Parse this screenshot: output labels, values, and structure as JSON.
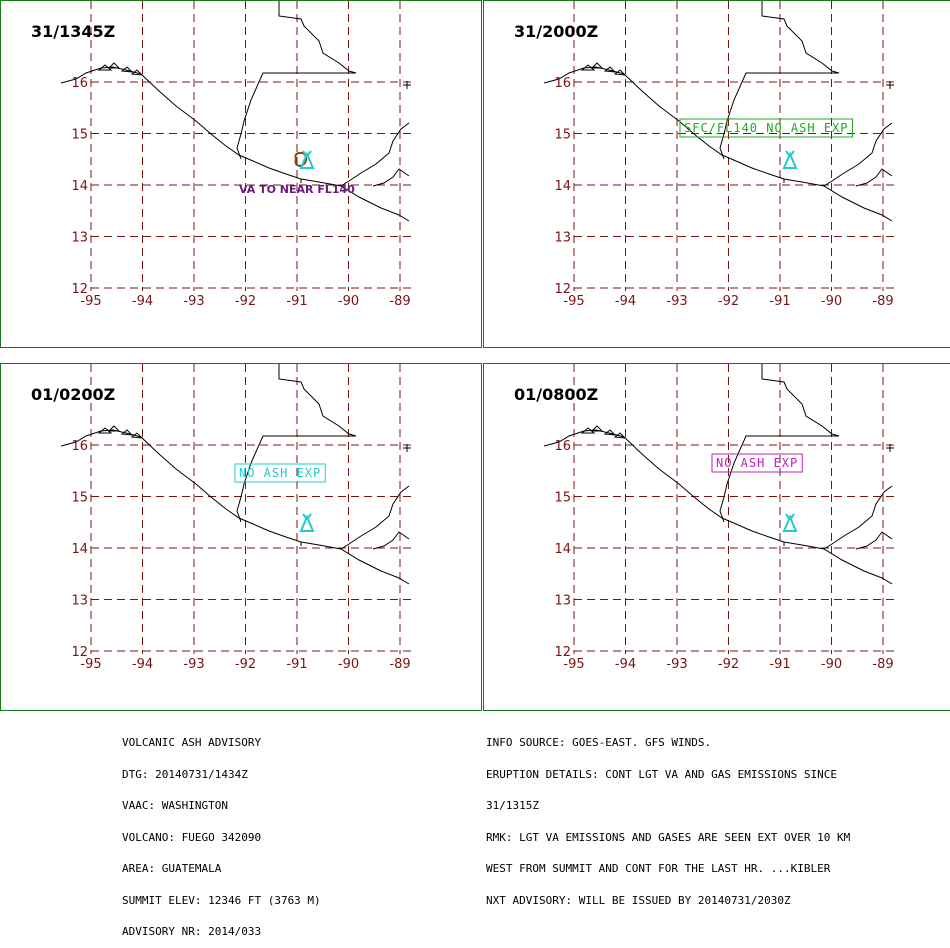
{
  "panels": [
    {
      "time": "31/1345Z",
      "label": "VA TO NEAR FL140",
      "label_color": "#6a1a7a",
      "label_boxed": false,
      "ash_observed": true
    },
    {
      "time": "31/2000Z",
      "label": "SFC/FL140 NO ASH EXP",
      "label_color": "#22aa22",
      "label_boxed": true,
      "ash_observed": false
    },
    {
      "time": "01/0200Z",
      "label": "NO ASH EXP",
      "label_color": "#22cccc",
      "label_boxed": true,
      "ash_observed": false
    },
    {
      "time": "01/0800Z",
      "label": "NO ASH EXP",
      "label_color": "#bb22bb",
      "label_boxed": true,
      "ash_observed": false
    }
  ],
  "axes": {
    "lon_labels": [
      "-95",
      "-94",
      "-93",
      "-92",
      "-91",
      "-90",
      "-89"
    ],
    "lat_labels": [
      "16",
      "15",
      "14",
      "13",
      "12"
    ]
  },
  "advisory_left": [
    "VOLCANIC ASH ADVISORY",
    "DTG: 20140731/1434Z",
    "VAAC: WASHINGTON",
    "VOLCANO: FUEGO 342090",
    "AREA: GUATEMALA",
    "SUMMIT ELEV: 12346 FT (3763 M)",
    "ADVISORY NR: 2014/033"
  ],
  "advisory_right": [
    "INFO SOURCE: GOES-EAST. GFS WINDS.",
    "ERUPTION DETAILS: CONT LGT VA AND GAS EMISSIONS SINCE",
    "31/1315Z",
    "RMK: LGT VA EMISSIONS AND GASES ARE SEEN EXT OVER 10 KM",
    "WEST FROM SUMMIT AND CONT FOR THE LAST HR. ...KIBLER",
    "NXT ADVISORY: WILL BE ISSUED BY 20140731/2030Z"
  ],
  "colors": {
    "grid": "#7a1414",
    "border": "#1a7a1a",
    "coast": "#000000",
    "volcano": "#22cccc",
    "ash": "#8b4513"
  }
}
